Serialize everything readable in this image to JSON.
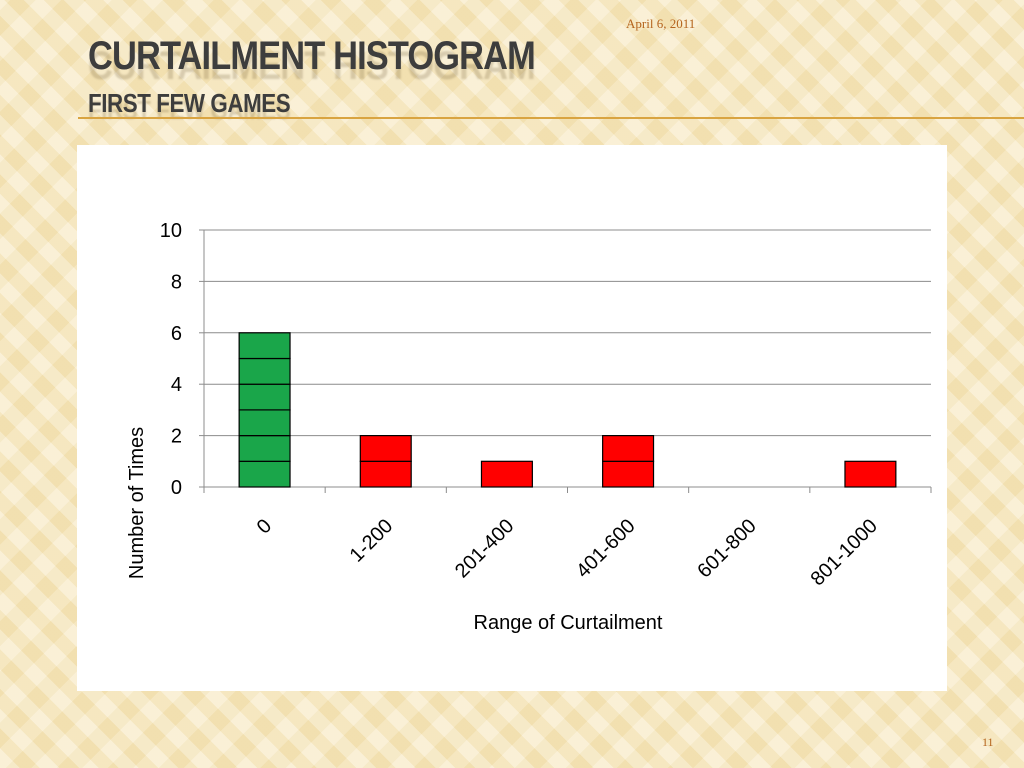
{
  "header": {
    "date": "April 6, 2011",
    "title": "CURTAILMENT HISTOGRAM",
    "subtitle": "FIRST FEW GAMES",
    "page_number": "11"
  },
  "colors": {
    "accent": "#d9a441",
    "title_text": "#3d3d3d",
    "footer_text": "#b5651d",
    "bar_green": "#1aa64a",
    "bar_red": "#ff0000"
  },
  "chart_data": {
    "type": "bar",
    "categories": [
      "0",
      "1-200",
      "201-400",
      "401-600",
      "601-800",
      "801-1000"
    ],
    "values": [
      6,
      2,
      1,
      2,
      0,
      1
    ],
    "bar_colors": [
      "#1aa64a",
      "#ff0000",
      "#ff0000",
      "#ff0000",
      "#ff0000",
      "#ff0000"
    ],
    "stacked_unit_blocks": true,
    "xlabel": "Range of Curtailment",
    "ylabel": "Number of Times",
    "ylim": [
      0,
      10
    ],
    "yticks": [
      0,
      2,
      4,
      6,
      8,
      10
    ],
    "grid": true,
    "legend": "none"
  }
}
